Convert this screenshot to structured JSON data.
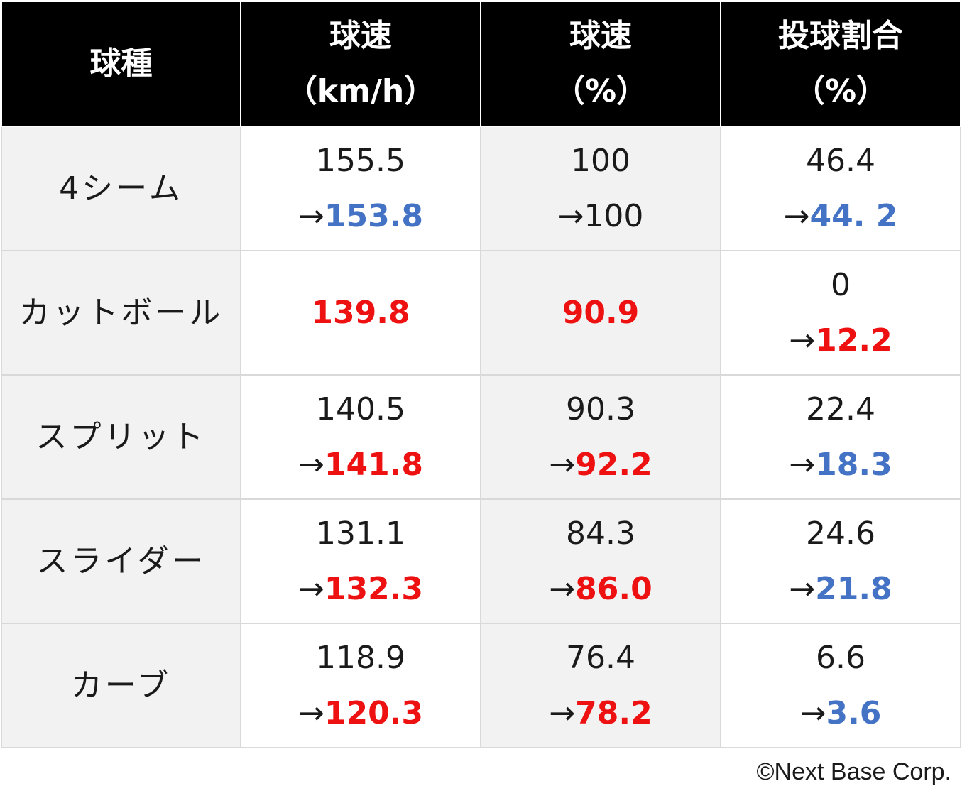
{
  "chart_data": {
    "type": "table",
    "colors": {
      "header_bg": "#000000",
      "header_text": "#ffffff",
      "red": "#ee1111",
      "blue": "#4472c4",
      "black": "#1a1a1a",
      "shade": "#f2f2f2"
    },
    "headers": [
      {
        "line1": "球種",
        "line2": ""
      },
      {
        "line1": "球速",
        "line2": "（km/h）"
      },
      {
        "line1": "球速",
        "line2": "（%）"
      },
      {
        "line1": "投球割合",
        "line2": "（%）"
      }
    ],
    "rows": [
      {
        "pitch": "4シーム",
        "cells": [
          {
            "old": "155.5",
            "new": "153.8",
            "new_color": "blue"
          },
          {
            "old": "100",
            "new": "100",
            "new_color": "black"
          },
          {
            "old": "46.4",
            "new": "44. 2",
            "new_color": "blue"
          }
        ]
      },
      {
        "pitch": "カットボール",
        "cells": [
          {
            "old": "",
            "new": "139.8",
            "new_color": "red"
          },
          {
            "old": "",
            "new": "90.9",
            "new_color": "red"
          },
          {
            "old": "0",
            "new": "12.2",
            "new_color": "red"
          }
        ]
      },
      {
        "pitch": "スプリット",
        "cells": [
          {
            "old": "140.5",
            "new": "141.8",
            "new_color": "red"
          },
          {
            "old": "90.3",
            "new": "92.2",
            "new_color": "red"
          },
          {
            "old": "22.4",
            "new": "18.3",
            "new_color": "blue"
          }
        ]
      },
      {
        "pitch": "スライダー",
        "cells": [
          {
            "old": "131.1",
            "new": "132.3",
            "new_color": "red"
          },
          {
            "old": "84.3",
            "new": "86.0",
            "new_color": "red"
          },
          {
            "old": "24.6",
            "new": "21.8",
            "new_color": "blue"
          }
        ]
      },
      {
        "pitch": "カーブ",
        "cells": [
          {
            "old": "118.9",
            "new": "120.3",
            "new_color": "red"
          },
          {
            "old": "76.4",
            "new": "78.2",
            "new_color": "red"
          },
          {
            "old": "6.6",
            "new": "3.6",
            "new_color": "blue"
          }
        ]
      }
    ],
    "arrow": "→"
  },
  "footer": {
    "copyright": "©Next Base Corp."
  }
}
